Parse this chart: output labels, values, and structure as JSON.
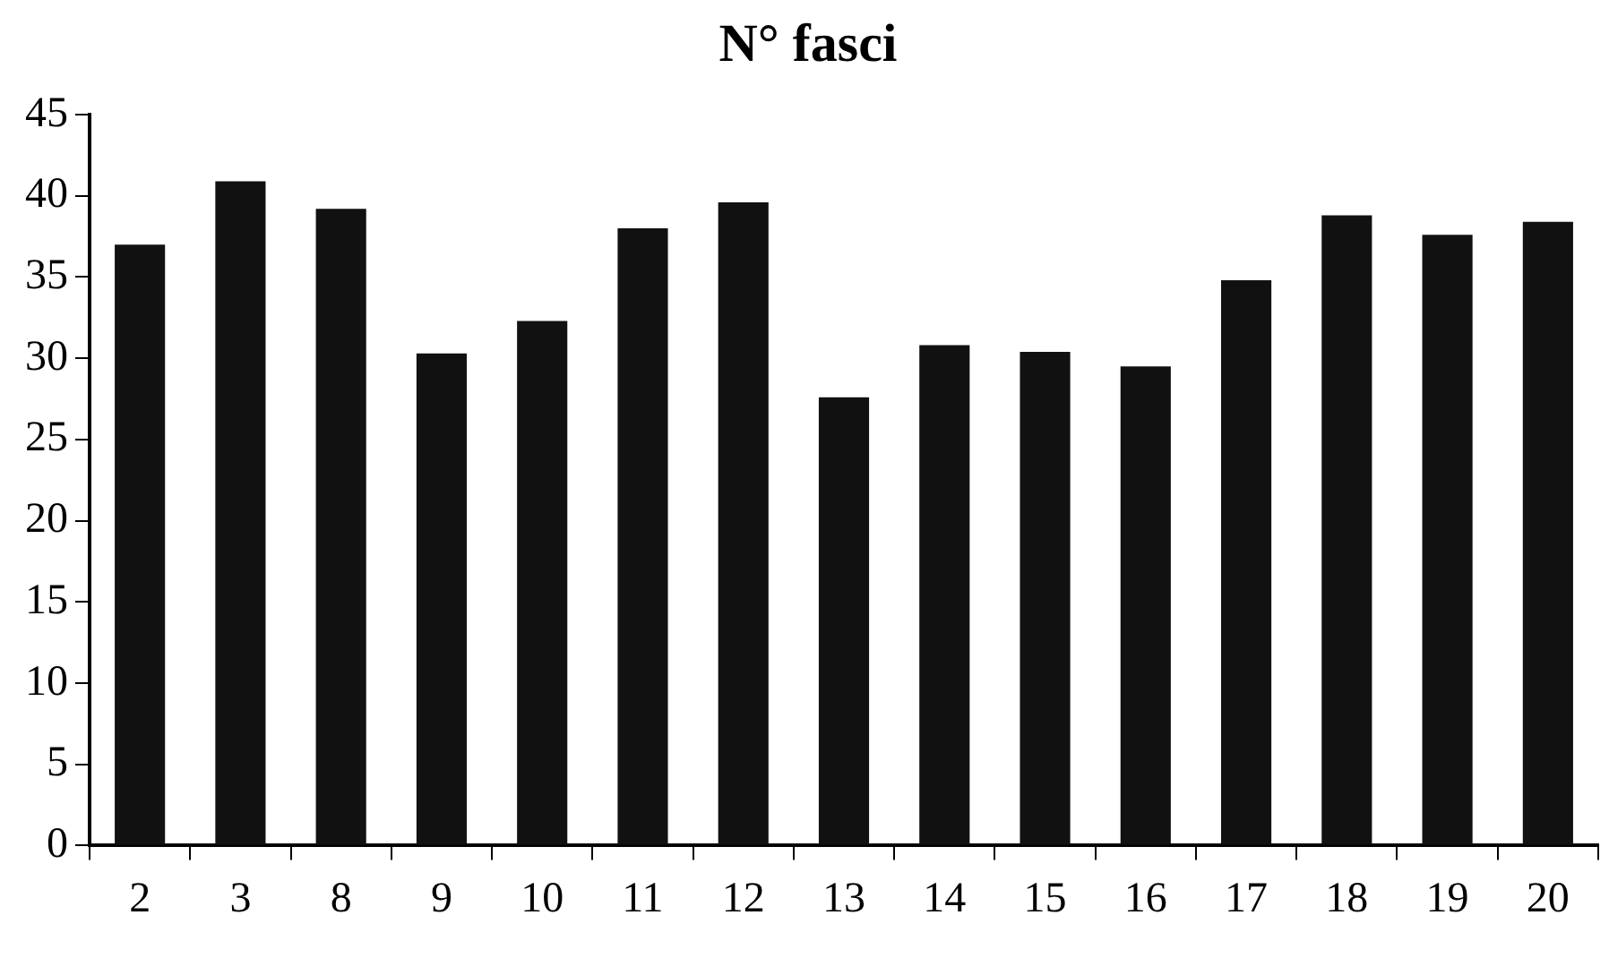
{
  "chart_data": {
    "type": "bar",
    "title": "N° fasci",
    "categories": [
      "2",
      "3",
      "8",
      "9",
      "10",
      "11",
      "12",
      "13",
      "14",
      "15",
      "16",
      "17",
      "18",
      "19",
      "20"
    ],
    "values": [
      37,
      40.9,
      39.2,
      30.3,
      32.3,
      38,
      39.6,
      27.6,
      30.8,
      30.4,
      29.5,
      34.8,
      38.8,
      37.6,
      38.4
    ],
    "color": "#111111",
    "ylim": [
      0,
      45
    ],
    "yticks": [
      0,
      5,
      10,
      15,
      20,
      25,
      30,
      35,
      40,
      45
    ],
    "grid": false,
    "legend": false
  }
}
